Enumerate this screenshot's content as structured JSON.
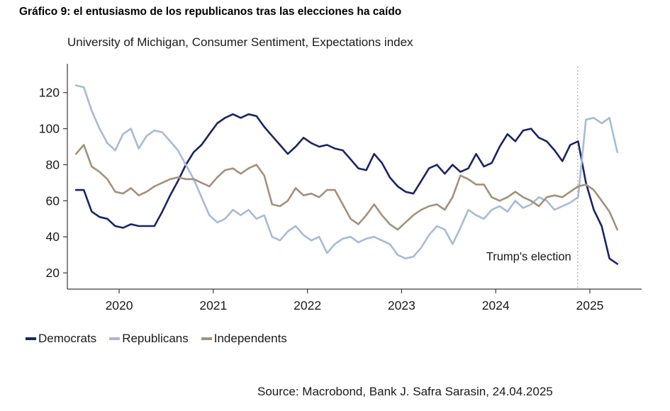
{
  "page": {
    "title": "Gráfico 9: el entusiasmo de los republicanos tras las elecciones ha caído",
    "source": "Source: Macrobond, Bank J. Safra Sarasin, 24.04.2025"
  },
  "chart_data": {
    "type": "line",
    "title": "University of Michigan, Consumer Sentiment, Expectations index",
    "frequency": "monthly",
    "start": "2019-07",
    "end": "2025-04",
    "grid": false,
    "legend_position": "bottom-left",
    "x_axis": {
      "ticks": [
        2020,
        2021,
        2022,
        2023,
        2024,
        2025
      ],
      "range": [
        2019.45,
        2025.55
      ]
    },
    "y_axis": {
      "ticks": [
        20,
        40,
        60,
        80,
        100,
        120
      ],
      "range": [
        11,
        136
      ]
    },
    "annotation": {
      "label": "Trump's election",
      "x": 2024.87,
      "y": 27,
      "line_color": "#b0b0b0"
    },
    "axis_color": "#3a3a3a",
    "series": [
      {
        "name": "Democrats",
        "color": "#1a2464",
        "values": [
          66,
          66,
          54,
          51,
          50,
          46,
          45,
          47,
          46,
          46,
          46,
          54,
          63,
          71,
          80,
          87,
          91,
          97,
          103,
          106,
          108,
          106,
          108,
          107,
          101,
          96,
          91,
          86,
          90,
          95,
          92,
          90,
          91,
          89,
          88,
          83,
          78,
          77,
          86,
          81,
          73,
          68,
          65,
          64,
          71,
          78,
          80,
          75,
          80,
          76,
          78,
          86,
          79,
          81,
          90,
          97,
          93,
          99,
          100,
          95,
          93,
          88,
          82,
          91,
          93,
          70,
          55,
          46,
          28,
          25
        ]
      },
      {
        "name": "Republicans",
        "color": "#a7bad8",
        "values": [
          124,
          123,
          110,
          100,
          92,
          88,
          97,
          100,
          89,
          96,
          99,
          98,
          93,
          88,
          80,
          72,
          62,
          52,
          48,
          50,
          55,
          52,
          55,
          50,
          52,
          40,
          38,
          43,
          46,
          41,
          38,
          40,
          31,
          36,
          39,
          40,
          37,
          39,
          40,
          38,
          36,
          30,
          28,
          29,
          34,
          41,
          46,
          44,
          36,
          45,
          55,
          52,
          50,
          55,
          57,
          54,
          60,
          56,
          58,
          62,
          60,
          55,
          57,
          59,
          62,
          105,
          106,
          103,
          106,
          87
        ]
      },
      {
        "name": "Independents",
        "color": "#a2917a",
        "values": [
          86,
          91,
          79,
          76,
          72,
          65,
          64,
          67,
          63,
          65,
          68,
          70,
          72,
          73,
          72,
          72,
          70,
          68,
          73,
          77,
          78,
          75,
          78,
          80,
          74,
          58,
          57,
          60,
          67,
          63,
          64,
          62,
          66,
          66,
          58,
          50,
          47,
          52,
          58,
          52,
          47,
          44,
          48,
          52,
          55,
          57,
          58,
          55,
          62,
          74,
          72,
          69,
          69,
          62,
          60,
          62,
          65,
          62,
          60,
          57,
          62,
          63,
          62,
          65,
          68,
          69,
          66,
          60,
          54,
          44
        ]
      }
    ]
  }
}
